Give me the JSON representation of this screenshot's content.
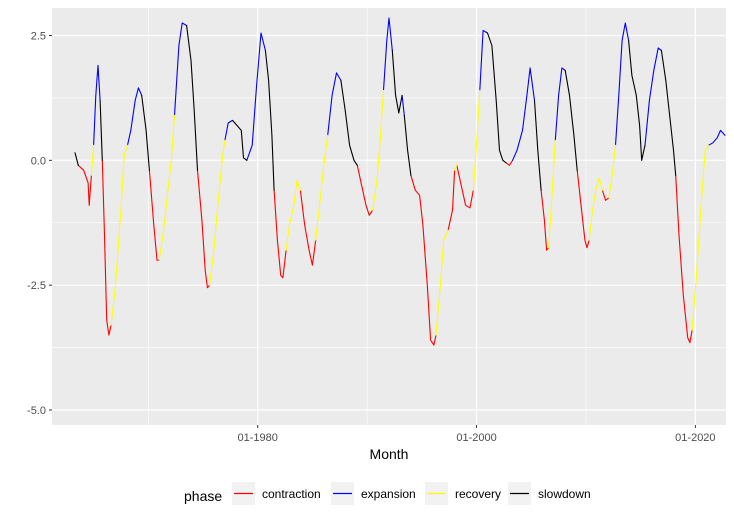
{
  "chart_data": {
    "type": "line",
    "xlabel": "Month",
    "ylabel": "",
    "x_ticks": [
      "01-1980",
      "01-2000",
      "01-2020"
    ],
    "y_ticks": [
      2.5,
      0.0,
      -2.5,
      -5.0
    ],
    "y_tick_labels": [
      "2.5",
      "0.0",
      "-2.5",
      "-5.0"
    ],
    "xlim": [
      1961.2,
      2022.8
    ],
    "ylim": [
      -5.3,
      3.05
    ],
    "grid": true,
    "legend": {
      "title": "phase",
      "placement": "bottom",
      "entries": [
        {
          "name": "contraction",
          "color": "#FF0000"
        },
        {
          "name": "expansion",
          "color": "#0000FF"
        },
        {
          "name": "recovery",
          "color": "#FFFF00"
        },
        {
          "name": "slowdown",
          "color": "#000000"
        }
      ]
    },
    "colors": {
      "contraction": "#FF0000",
      "expansion": "#0000FF",
      "recovery": "#FFFF00",
      "slowdown": "#000000"
    },
    "points": [
      [
        1963.3,
        0.15,
        "slowdown"
      ],
      [
        1963.6,
        -0.1,
        "contraction"
      ],
      [
        1964.1,
        -0.2,
        "contraction"
      ],
      [
        1964.5,
        -0.45,
        "contraction"
      ],
      [
        1964.6,
        -0.9,
        "contraction"
      ],
      [
        1964.8,
        -0.3,
        "recovery"
      ],
      [
        1965.0,
        0.3,
        "expansion"
      ],
      [
        1965.2,
        1.3,
        "expansion"
      ],
      [
        1965.4,
        1.9,
        "expansion"
      ],
      [
        1965.6,
        1.2,
        "slowdown"
      ],
      [
        1965.8,
        0.0,
        "contraction"
      ],
      [
        1966.0,
        -1.5,
        "contraction"
      ],
      [
        1966.2,
        -3.2,
        "contraction"
      ],
      [
        1966.4,
        -3.5,
        "contraction"
      ],
      [
        1966.6,
        -3.3,
        "recovery"
      ],
      [
        1967.0,
        -2.5,
        "recovery"
      ],
      [
        1967.5,
        -1.0,
        "recovery"
      ],
      [
        1967.8,
        0.1,
        "recovery"
      ],
      [
        1968.1,
        0.3,
        "expansion"
      ],
      [
        1968.4,
        0.6,
        "expansion"
      ],
      [
        1968.8,
        1.2,
        "expansion"
      ],
      [
        1969.1,
        1.45,
        "expansion"
      ],
      [
        1969.4,
        1.3,
        "slowdown"
      ],
      [
        1969.8,
        0.6,
        "slowdown"
      ],
      [
        1970.1,
        -0.2,
        "contraction"
      ],
      [
        1970.5,
        -1.3,
        "contraction"
      ],
      [
        1970.8,
        -2.0,
        "contraction"
      ],
      [
        1971.0,
        -2.0,
        "recovery"
      ],
      [
        1971.4,
        -1.4,
        "recovery"
      ],
      [
        1971.8,
        -0.6,
        "recovery"
      ],
      [
        1972.1,
        0.0,
        "recovery"
      ],
      [
        1972.4,
        0.9,
        "expansion"
      ],
      [
        1972.8,
        2.3,
        "expansion"
      ],
      [
        1973.1,
        2.75,
        "expansion"
      ],
      [
        1973.5,
        2.7,
        "slowdown"
      ],
      [
        1973.9,
        2.0,
        "slowdown"
      ],
      [
        1974.2,
        1.0,
        "slowdown"
      ],
      [
        1974.5,
        -0.2,
        "contraction"
      ],
      [
        1974.9,
        -1.2,
        "contraction"
      ],
      [
        1975.2,
        -2.2,
        "contraction"
      ],
      [
        1975.4,
        -2.55,
        "contraction"
      ],
      [
        1975.6,
        -2.5,
        "recovery"
      ],
      [
        1976.0,
        -1.8,
        "recovery"
      ],
      [
        1976.4,
        -0.8,
        "recovery"
      ],
      [
        1976.8,
        0.1,
        "recovery"
      ],
      [
        1977.0,
        0.4,
        "expansion"
      ],
      [
        1977.3,
        0.75,
        "expansion"
      ],
      [
        1977.7,
        0.8,
        "slowdown"
      ],
      [
        1978.1,
        0.7,
        "slowdown"
      ],
      [
        1978.5,
        0.6,
        "slowdown"
      ],
      [
        1978.7,
        0.05,
        "slowdown"
      ],
      [
        1979.0,
        0.0,
        "expansion"
      ],
      [
        1979.5,
        0.3,
        "expansion"
      ],
      [
        1979.9,
        1.5,
        "expansion"
      ],
      [
        1980.3,
        2.55,
        "expansion"
      ],
      [
        1980.7,
        2.2,
        "slowdown"
      ],
      [
        1981.0,
        1.6,
        "slowdown"
      ],
      [
        1981.3,
        0.5,
        "slowdown"
      ],
      [
        1981.5,
        -0.6,
        "contraction"
      ],
      [
        1981.8,
        -1.6,
        "contraction"
      ],
      [
        1982.1,
        -2.3,
        "contraction"
      ],
      [
        1982.3,
        -2.35,
        "contraction"
      ],
      [
        1982.6,
        -1.8,
        "recovery"
      ],
      [
        1982.9,
        -1.3,
        "recovery"
      ],
      [
        1983.3,
        -0.9,
        "recovery"
      ],
      [
        1983.6,
        -0.4,
        "recovery"
      ],
      [
        1983.9,
        -0.6,
        "contraction"
      ],
      [
        1984.3,
        -1.3,
        "contraction"
      ],
      [
        1984.7,
        -1.8,
        "contraction"
      ],
      [
        1985.0,
        -2.1,
        "contraction"
      ],
      [
        1985.3,
        -1.6,
        "recovery"
      ],
      [
        1985.7,
        -0.8,
        "recovery"
      ],
      [
        1986.1,
        0.0,
        "recovery"
      ],
      [
        1986.4,
        0.5,
        "expansion"
      ],
      [
        1986.8,
        1.3,
        "expansion"
      ],
      [
        1987.2,
        1.75,
        "expansion"
      ],
      [
        1987.6,
        1.6,
        "slowdown"
      ],
      [
        1988.0,
        1.0,
        "slowdown"
      ],
      [
        1988.4,
        0.3,
        "slowdown"
      ],
      [
        1988.8,
        0.0,
        "slowdown"
      ],
      [
        1989.1,
        -0.1,
        "contraction"
      ],
      [
        1989.5,
        -0.5,
        "contraction"
      ],
      [
        1989.9,
        -0.9,
        "contraction"
      ],
      [
        1990.2,
        -1.1,
        "contraction"
      ],
      [
        1990.5,
        -1.0,
        "recovery"
      ],
      [
        1990.9,
        -0.4,
        "recovery"
      ],
      [
        1991.2,
        0.4,
        "recovery"
      ],
      [
        1991.5,
        1.4,
        "expansion"
      ],
      [
        1991.8,
        2.4,
        "expansion"
      ],
      [
        1992.0,
        2.85,
        "expansion"
      ],
      [
        1992.3,
        2.2,
        "slowdown"
      ],
      [
        1992.6,
        1.3,
        "slowdown"
      ],
      [
        1992.9,
        0.95,
        "slowdown"
      ],
      [
        1993.2,
        1.3,
        "expansion"
      ],
      [
        1993.4,
        0.9,
        "slowdown"
      ],
      [
        1993.7,
        0.2,
        "slowdown"
      ],
      [
        1994.0,
        -0.3,
        "contraction"
      ],
      [
        1994.4,
        -0.6,
        "contraction"
      ],
      [
        1994.8,
        -0.7,
        "contraction"
      ],
      [
        1995.1,
        -1.3,
        "contraction"
      ],
      [
        1995.5,
        -2.5,
        "contraction"
      ],
      [
        1995.8,
        -3.6,
        "contraction"
      ],
      [
        1996.1,
        -3.7,
        "contraction"
      ],
      [
        1996.3,
        -3.5,
        "recovery"
      ],
      [
        1996.7,
        -2.5,
        "recovery"
      ],
      [
        1997.0,
        -1.6,
        "recovery"
      ],
      [
        1997.4,
        -1.4,
        "contraction"
      ],
      [
        1997.8,
        -1.0,
        "contraction"
      ],
      [
        1998.0,
        -0.2,
        "recovery"
      ],
      [
        1998.2,
        -0.1,
        "contraction"
      ],
      [
        1998.6,
        -0.5,
        "contraction"
      ],
      [
        1999.0,
        -0.9,
        "contraction"
      ],
      [
        1999.4,
        -0.95,
        "contraction"
      ],
      [
        1999.7,
        -0.6,
        "recovery"
      ],
      [
        2000.0,
        0.3,
        "recovery"
      ],
      [
        2000.3,
        1.4,
        "expansion"
      ],
      [
        2000.6,
        2.6,
        "expansion"
      ],
      [
        2001.0,
        2.55,
        "slowdown"
      ],
      [
        2001.4,
        2.3,
        "slowdown"
      ],
      [
        2001.8,
        1.2,
        "slowdown"
      ],
      [
        2002.1,
        0.2,
        "slowdown"
      ],
      [
        2002.4,
        0.0,
        "slowdown"
      ],
      [
        2002.7,
        -0.05,
        "contraction"
      ],
      [
        2003.0,
        -0.1,
        "contraction"
      ],
      [
        2003.3,
        0.0,
        "expansion"
      ],
      [
        2003.7,
        0.2,
        "expansion"
      ],
      [
        2004.2,
        0.6,
        "expansion"
      ],
      [
        2004.6,
        1.3,
        "expansion"
      ],
      [
        2004.9,
        1.85,
        "expansion"
      ],
      [
        2005.3,
        1.2,
        "slowdown"
      ],
      [
        2005.6,
        0.2,
        "slowdown"
      ],
      [
        2005.9,
        -0.6,
        "contraction"
      ],
      [
        2006.2,
        -1.2,
        "contraction"
      ],
      [
        2006.4,
        -1.8,
        "contraction"
      ],
      [
        2006.6,
        -1.75,
        "recovery"
      ],
      [
        2006.9,
        -0.7,
        "recovery"
      ],
      [
        2007.2,
        0.4,
        "expansion"
      ],
      [
        2007.5,
        1.3,
        "expansion"
      ],
      [
        2007.8,
        1.85,
        "expansion"
      ],
      [
        2008.1,
        1.8,
        "slowdown"
      ],
      [
        2008.5,
        1.3,
        "slowdown"
      ],
      [
        2008.9,
        0.5,
        "slowdown"
      ],
      [
        2009.2,
        -0.2,
        "contraction"
      ],
      [
        2009.6,
        -1.0,
        "contraction"
      ],
      [
        2009.9,
        -1.6,
        "contraction"
      ],
      [
        2010.1,
        -1.75,
        "contraction"
      ],
      [
        2010.3,
        -1.6,
        "recovery"
      ],
      [
        2010.6,
        -1.0,
        "recovery"
      ],
      [
        2010.9,
        -0.6,
        "recovery"
      ],
      [
        2011.2,
        -0.35,
        "recovery"
      ],
      [
        2011.5,
        -0.6,
        "contraction"
      ],
      [
        2011.8,
        -0.8,
        "contraction"
      ],
      [
        2012.1,
        -0.75,
        "recovery"
      ],
      [
        2012.4,
        -0.3,
        "recovery"
      ],
      [
        2012.7,
        0.3,
        "expansion"
      ],
      [
        2013.0,
        1.3,
        "expansion"
      ],
      [
        2013.3,
        2.4,
        "expansion"
      ],
      [
        2013.6,
        2.75,
        "expansion"
      ],
      [
        2013.9,
        2.4,
        "slowdown"
      ],
      [
        2014.2,
        1.7,
        "slowdown"
      ],
      [
        2014.6,
        1.3,
        "slowdown"
      ],
      [
        2014.9,
        0.7,
        "slowdown"
      ],
      [
        2015.1,
        0.0,
        "slowdown"
      ],
      [
        2015.4,
        0.3,
        "expansion"
      ],
      [
        2015.8,
        1.2,
        "expansion"
      ],
      [
        2016.2,
        1.8,
        "expansion"
      ],
      [
        2016.6,
        2.25,
        "expansion"
      ],
      [
        2016.9,
        2.2,
        "slowdown"
      ],
      [
        2017.3,
        1.6,
        "slowdown"
      ],
      [
        2017.7,
        0.8,
        "slowdown"
      ],
      [
        2018.0,
        0.2,
        "slowdown"
      ],
      [
        2018.2,
        -0.3,
        "contraction"
      ],
      [
        2018.5,
        -1.5,
        "contraction"
      ],
      [
        2018.9,
        -2.7,
        "contraction"
      ],
      [
        2019.3,
        -3.55,
        "contraction"
      ],
      [
        2019.5,
        -3.65,
        "contraction"
      ],
      [
        2019.7,
        -3.4,
        "recovery"
      ],
      [
        2020.1,
        -2.3,
        "recovery"
      ],
      [
        2020.5,
        -1.0,
        "recovery"
      ],
      [
        2020.9,
        0.2,
        "recovery"
      ],
      [
        2021.2,
        0.3,
        "expansion"
      ],
      [
        2021.6,
        0.35,
        "expansion"
      ],
      [
        2022.0,
        0.45,
        "expansion"
      ],
      [
        2022.3,
        0.6,
        "expansion"
      ],
      [
        2022.7,
        0.5,
        "slowdown"
      ]
    ]
  }
}
